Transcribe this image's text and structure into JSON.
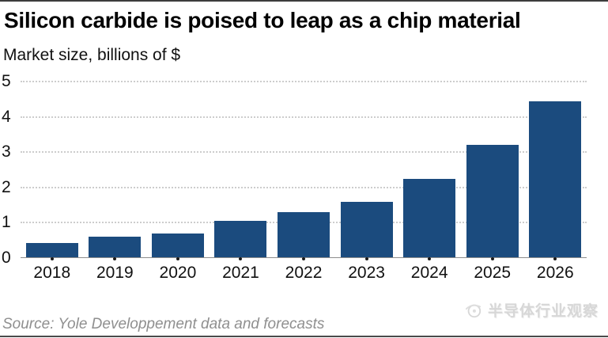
{
  "header": {
    "title": "Silicon carbide is poised to leap as a chip material",
    "subtitle": "Market size, billions of $"
  },
  "chart_data": {
    "type": "bar",
    "title": "Silicon carbide is poised to leap as a chip material",
    "ylabel": "Market size, billions of $",
    "xlabel": "",
    "categories": [
      "2018",
      "2019",
      "2020",
      "2021",
      "2022",
      "2023",
      "2024",
      "2025",
      "2026"
    ],
    "values": [
      0.42,
      0.6,
      0.7,
      1.05,
      1.3,
      1.6,
      2.25,
      3.2,
      4.45
    ],
    "ylim": [
      0,
      5
    ],
    "yticks": [
      0,
      1,
      2,
      3,
      4,
      5
    ],
    "grid": "horizontal-dotted",
    "legend_position": "none",
    "bar_color": "#1b4b7e"
  },
  "footer": {
    "source": "Source: Yole Developpement data and forecasts",
    "watermark": "半导体行业观察"
  },
  "colors": {
    "bar": "#1b4b7e",
    "gridline": "#cdcdcd",
    "axis_line": "#8d8d8d",
    "source_text": "#8f8f8f",
    "watermark_text": "#d7d7d7",
    "rule": "#3c3c3c"
  }
}
